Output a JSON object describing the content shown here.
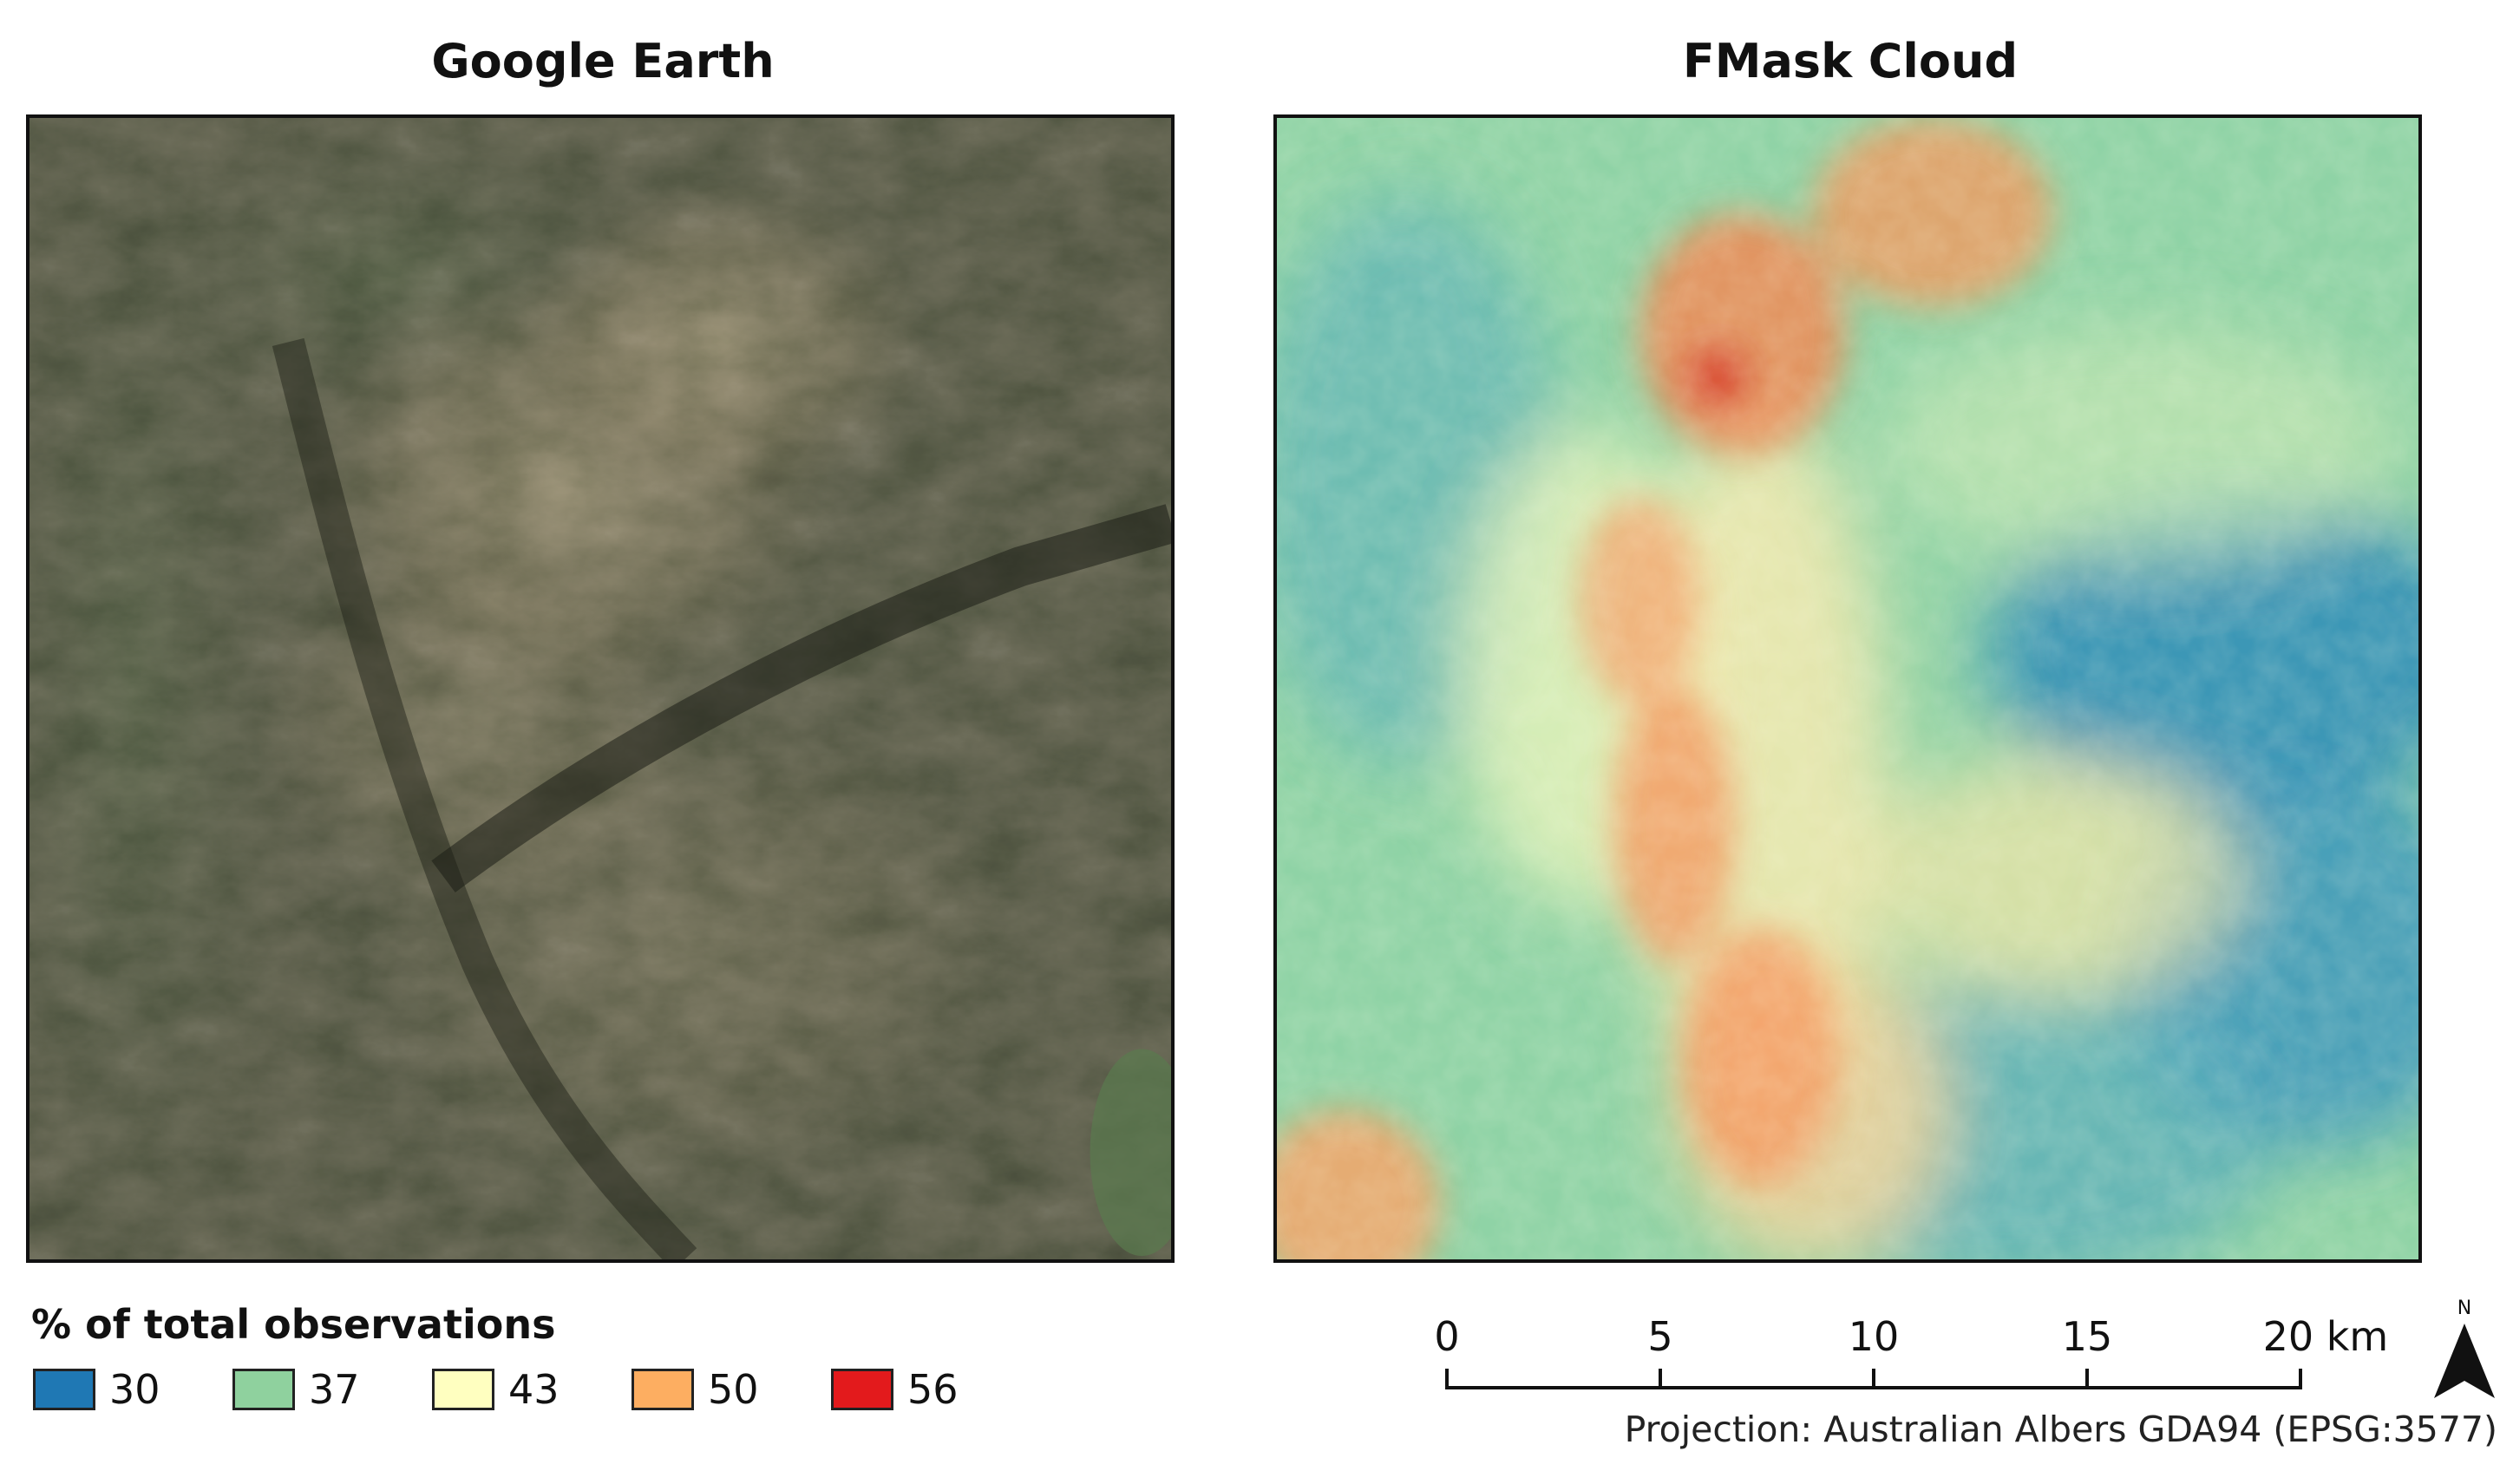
{
  "panels": {
    "left_title": "Google Earth",
    "right_title": "FMask Cloud"
  },
  "legend": {
    "title": "% of total observations",
    "items": [
      {
        "label": "30",
        "color": "#1f78b4"
      },
      {
        "label": "37",
        "color": "#8fd19e"
      },
      {
        "label": "43",
        "color": "#ffffc0"
      },
      {
        "label": "50",
        "color": "#fdae61"
      },
      {
        "label": "56",
        "color": "#e31a1c"
      }
    ]
  },
  "scalebar": {
    "ticks": [
      "0",
      "5",
      "10",
      "15",
      "20 km"
    ]
  },
  "north_label": "N",
  "projection": "Projection: Australian Albers GDA94 (EPSG:3577)",
  "icons": {
    "north": "north-arrow-icon"
  }
}
